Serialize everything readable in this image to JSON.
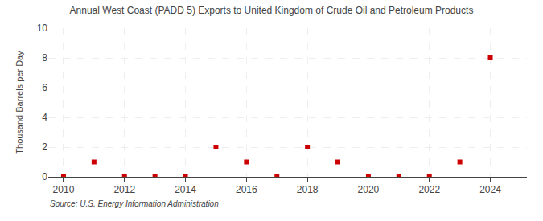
{
  "chart_data": {
    "type": "scatter",
    "title": "Annual West Coast (PADD 5) Exports to United Kingdom of Crude Oil and Petroleum Products",
    "ylabel": "Thousand Barrels per Day",
    "annotations": [
      "Source: U.S. Energy Information Administration"
    ],
    "x": [
      2010,
      2011,
      2012,
      2013,
      2014,
      2015,
      2016,
      2017,
      2018,
      2019,
      2020,
      2021,
      2022,
      2023,
      2024
    ],
    "values": [
      0,
      1,
      0,
      0,
      0,
      2,
      1,
      0,
      2,
      1,
      0,
      0,
      0,
      1,
      8
    ],
    "color": "#cc0000",
    "marker": "square",
    "xlim": [
      2009.5,
      2025.2
    ],
    "xticks": [
      2010,
      2012,
      2014,
      2016,
      2018,
      2020,
      2022,
      2024
    ],
    "ylim": [
      0,
      10
    ],
    "yticks": [
      0,
      2,
      4,
      6,
      8,
      10
    ],
    "grid": true
  }
}
